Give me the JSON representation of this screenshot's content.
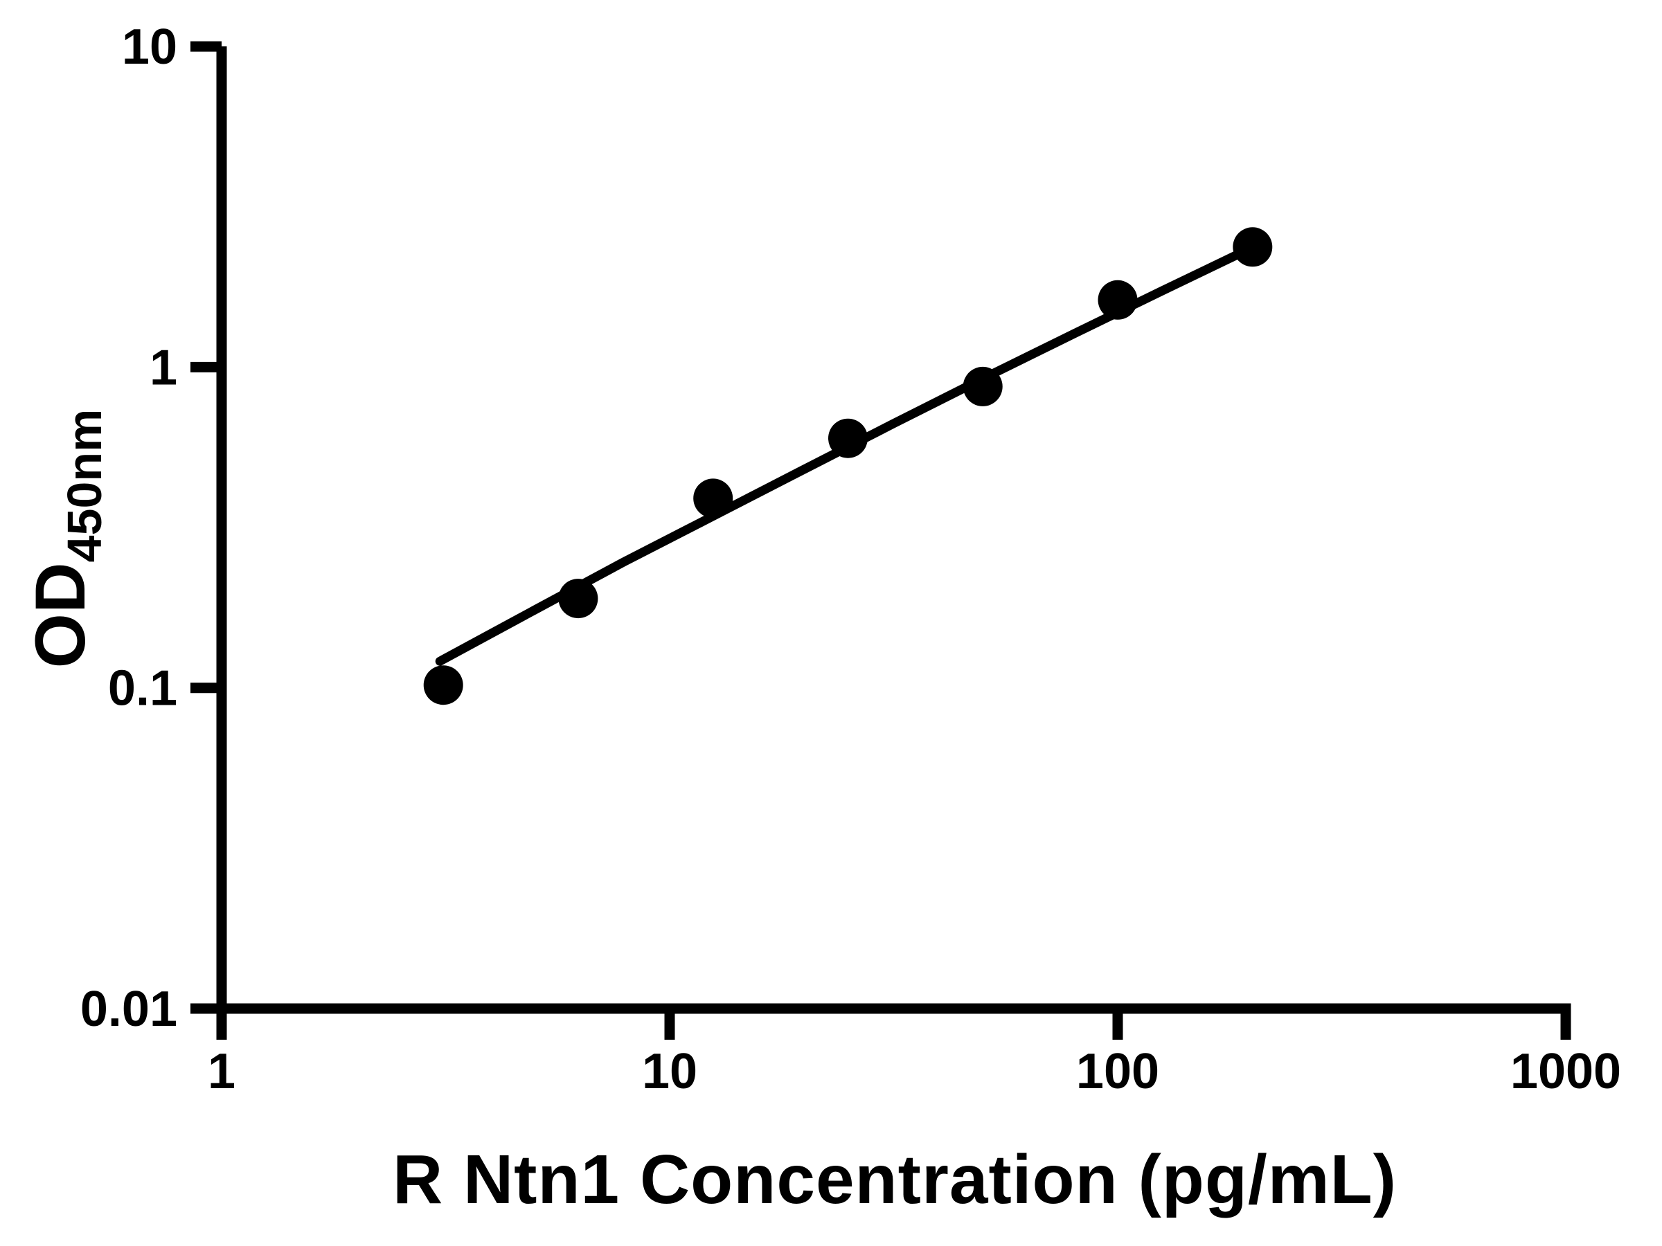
{
  "chart_data": {
    "type": "scatter",
    "title": "",
    "xlabel": "R Ntn1 Concentration (pg/mL)",
    "ylabel_main": "OD",
    "ylabel_sub": "450nm",
    "x_scale": "log",
    "y_scale": "log",
    "xlim": [
      1,
      1000
    ],
    "ylim": [
      0.01,
      10
    ],
    "grid": "off",
    "legend": "none",
    "x_ticks": [
      {
        "value": 1,
        "label": "1"
      },
      {
        "value": 10,
        "label": "10"
      },
      {
        "value": 100,
        "label": "100"
      },
      {
        "value": 1000,
        "label": "1000"
      }
    ],
    "y_ticks": [
      {
        "value": 10,
        "label": "10"
      },
      {
        "value": 1,
        "label": "1"
      },
      {
        "value": 0.1,
        "label": "0.1"
      },
      {
        "value": 0.01,
        "label": "0.01"
      }
    ],
    "series": [
      {
        "name": "standard-curve-points",
        "marker": "filled-circle",
        "points": [
          {
            "x": 3.125,
            "y": 0.102
          },
          {
            "x": 6.25,
            "y": 0.19
          },
          {
            "x": 12.5,
            "y": 0.39
          },
          {
            "x": 25,
            "y": 0.6
          },
          {
            "x": 50,
            "y": 0.87
          },
          {
            "x": 100,
            "y": 1.62
          },
          {
            "x": 200,
            "y": 2.37
          }
        ]
      }
    ],
    "fit_line": [
      {
        "x": 3.07,
        "y": 0.121
      },
      {
        "x": 5.0,
        "y": 0.175
      },
      {
        "x": 7.9,
        "y": 0.247
      },
      {
        "x": 12.6,
        "y": 0.345
      },
      {
        "x": 20.0,
        "y": 0.481
      },
      {
        "x": 31.6,
        "y": 0.667
      },
      {
        "x": 50.1,
        "y": 0.922
      },
      {
        "x": 79.4,
        "y": 1.266
      },
      {
        "x": 125.9,
        "y": 1.732
      },
      {
        "x": 200.9,
        "y": 2.371
      }
    ],
    "colors": {
      "points": "#000000",
      "line": "#000000",
      "axis": "#000000",
      "background": "#ffffff"
    }
  }
}
